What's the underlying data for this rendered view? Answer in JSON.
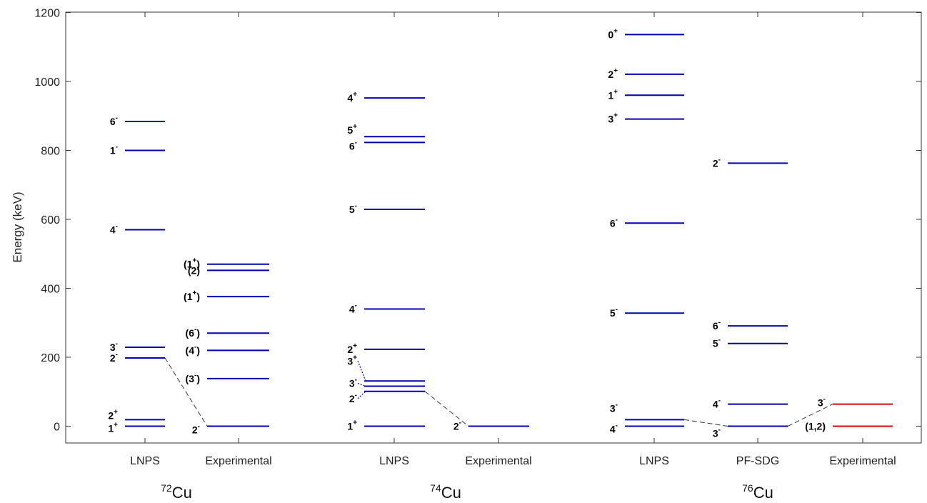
{
  "chart_data": {
    "type": "level-scheme",
    "ylabel": "Energy (keV)",
    "ylim": [
      0,
      1200
    ],
    "yticks": [
      0,
      200,
      400,
      600,
      800,
      1000,
      1200
    ],
    "nuclei": [
      {
        "mass": "72",
        "symbol": "Cu",
        "columns": [
          0,
          1
        ]
      },
      {
        "mass": "74",
        "symbol": "Cu",
        "columns": [
          2,
          3
        ]
      },
      {
        "mass": "76",
        "symbol": "Cu",
        "columns": [
          4,
          5,
          6
        ]
      }
    ],
    "columns": [
      {
        "name": "LNPS",
        "color": "#0000b4",
        "levels": [
          {
            "e": 0,
            "pre": "1",
            "sup": "+",
            "post": ""
          },
          {
            "e": 19,
            "pre": "2",
            "sup": "+",
            "post": ""
          },
          {
            "e": 198,
            "pre": "2",
            "sup": "-",
            "post": ""
          },
          {
            "e": 229,
            "pre": "3",
            "sup": "-",
            "post": ""
          },
          {
            "e": 570,
            "pre": "4",
            "sup": "-",
            "post": ""
          },
          {
            "e": 800,
            "pre": "1",
            "sup": "-",
            "post": ""
          },
          {
            "e": 884,
            "pre": "6",
            "sup": "-",
            "post": ""
          }
        ]
      },
      {
        "name": "Experimental",
        "color": "#0000b4",
        "levels": [
          {
            "e": 0,
            "pre": "2",
            "sup": "-",
            "post": ""
          },
          {
            "e": 138,
            "pre": "(3",
            "sup": "-",
            "post": ")"
          },
          {
            "e": 220,
            "pre": "(4",
            "sup": "-",
            "post": ")"
          },
          {
            "e": 270,
            "pre": "(6",
            "sup": "-",
            "post": ")"
          },
          {
            "e": 376,
            "pre": "(1",
            "sup": "+",
            "post": ")"
          },
          {
            "e": 452,
            "pre": "(2)",
            "sup": "",
            "post": ""
          },
          {
            "e": 470,
            "pre": "(1",
            "sup": "+",
            "post": ")"
          }
        ]
      },
      {
        "name": "LNPS",
        "color": "#0000b4",
        "levels": [
          {
            "e": 0,
            "pre": "1",
            "sup": "+",
            "post": ""
          },
          {
            "e": 101,
            "pre": "2",
            "sup": "-",
            "post": ""
          },
          {
            "e": 116,
            "pre": "3",
            "sup": "-",
            "post": ""
          },
          {
            "e": 131,
            "pre": "3",
            "sup": "+",
            "post": ""
          },
          {
            "e": 223,
            "pre": "2",
            "sup": "+",
            "post": ""
          },
          {
            "e": 340,
            "pre": "4",
            "sup": "-",
            "post": ""
          },
          {
            "e": 629,
            "pre": "5",
            "sup": "-",
            "post": ""
          },
          {
            "e": 823,
            "pre": "6",
            "sup": "-",
            "post": ""
          },
          {
            "e": 840,
            "pre": "5",
            "sup": "+",
            "post": ""
          },
          {
            "e": 952,
            "pre": "4",
            "sup": "+",
            "post": ""
          }
        ]
      },
      {
        "name": "Experimental",
        "color": "#0000b4",
        "levels": [
          {
            "e": 0,
            "pre": "2",
            "sup": "-",
            "post": ""
          }
        ]
      },
      {
        "name": "LNPS",
        "color": "#0000b4",
        "levels": [
          {
            "e": 0,
            "pre": "4",
            "sup": "-",
            "post": ""
          },
          {
            "e": 19,
            "pre": "3",
            "sup": "-",
            "post": ""
          },
          {
            "e": 328,
            "pre": "5",
            "sup": "-",
            "post": ""
          },
          {
            "e": 589,
            "pre": "6",
            "sup": "-",
            "post": ""
          },
          {
            "e": 891,
            "pre": "3",
            "sup": "+",
            "post": ""
          },
          {
            "e": 960,
            "pre": "1",
            "sup": "+",
            "post": ""
          },
          {
            "e": 1021,
            "pre": "2",
            "sup": "+",
            "post": ""
          },
          {
            "e": 1136,
            "pre": "0",
            "sup": "+",
            "post": ""
          }
        ]
      },
      {
        "name": "PF-SDG",
        "color": "#0000b4",
        "levels": [
          {
            "e": 0,
            "pre": "3",
            "sup": "-",
            "post": ""
          },
          {
            "e": 64,
            "pre": "4",
            "sup": "-",
            "post": ""
          },
          {
            "e": 240,
            "pre": "5",
            "sup": "-",
            "post": ""
          },
          {
            "e": 291,
            "pre": "6",
            "sup": "-",
            "post": ""
          },
          {
            "e": 763,
            "pre": "2",
            "sup": "-",
            "post": ""
          }
        ]
      },
      {
        "name": "Experimental",
        "color": "#e60000",
        "levels": [
          {
            "e": 0,
            "pre": "(1,2)",
            "sup": "",
            "post": ""
          },
          {
            "e": 64,
            "pre": "3",
            "sup": "-",
            "post": ""
          }
        ]
      }
    ],
    "connectors": [
      {
        "from": [
          0,
          198
        ],
        "to": [
          1,
          0
        ],
        "style": "dashed"
      },
      {
        "from": [
          2,
          101
        ],
        "to": [
          3,
          0
        ],
        "style": "dashed"
      },
      {
        "from": [
          4,
          19
        ],
        "to": [
          5,
          0
        ],
        "style": "dashed"
      },
      {
        "from": [
          5,
          0
        ],
        "to": [
          6,
          64
        ],
        "style": "dashed"
      }
    ]
  }
}
